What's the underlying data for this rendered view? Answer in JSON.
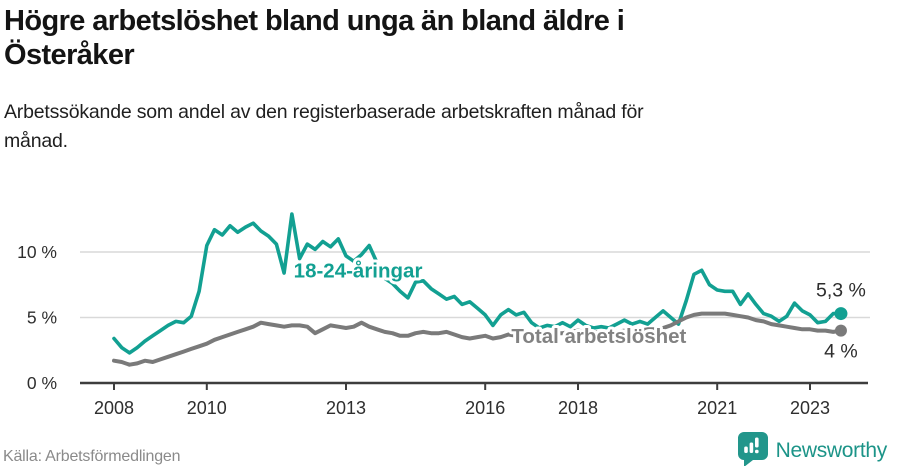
{
  "header": {
    "title_lines": [
      "Högre arbetslöshet bland unga än bland äldre i",
      "Österåker"
    ],
    "subtitle_lines": [
      "Arbetssökande som andel av den registerbaserade arbetskraften månad för",
      "månad."
    ]
  },
  "footer": {
    "source": "Källa: Arbetsförmedlingen",
    "brand": "Newsworthy"
  },
  "colors": {
    "accent_teal": "#12a092",
    "line_gray": "#7a7a7a",
    "gridline": "#d9d9d9",
    "axis": "#3d3d3d",
    "tick_label": "#2e2e2e",
    "end_label": "#2d2d2d",
    "logo_teal": "#22968b"
  },
  "chart_data": {
    "type": "line",
    "title": "Högre arbetslöshet bland unga än bland äldre i Österåker",
    "subtitle": "Arbetssökande som andel av den registerbaserade arbetskraften månad för månad.",
    "source": "Källa: Arbetsförmedlingen",
    "grid": "horizontal-only",
    "legend_position": "inline-labels",
    "x_domain": [
      2008.0,
      2023.667
    ],
    "x_step": 0.166667,
    "ylim": [
      0,
      13.5
    ],
    "x_ticks": [
      2008,
      2010,
      2013,
      2016,
      2018,
      2021,
      2023
    ],
    "x_tick_labels": [
      "2008",
      "2010",
      "2013",
      "2016",
      "2018",
      "2021",
      "2023"
    ],
    "y_ticks": [
      0,
      5,
      10
    ],
    "y_tick_labels": [
      "0 %",
      "5 %",
      "10 %"
    ],
    "series": [
      {
        "name": "18-24-åringar",
        "color": "#12a092",
        "end_label": "5,3 %",
        "end_value": 5.3,
        "values": [
          3.4,
          2.7,
          2.3,
          2.7,
          3.2,
          3.6,
          4.0,
          4.4,
          4.7,
          4.6,
          5.1,
          7.0,
          10.5,
          11.7,
          11.3,
          12.0,
          11.5,
          11.9,
          12.2,
          11.6,
          11.2,
          10.6,
          8.4,
          12.9,
          9.5,
          10.6,
          10.2,
          10.8,
          10.4,
          11.0,
          9.7,
          9.3,
          9.8,
          10.5,
          9.2,
          8.0,
          7.6,
          7.0,
          6.5,
          7.7,
          7.8,
          7.2,
          6.8,
          6.4,
          6.6,
          6.0,
          6.2,
          5.7,
          5.2,
          4.4,
          5.2,
          5.6,
          5.2,
          5.4,
          4.6,
          4.2,
          4.4,
          4.3,
          4.6,
          4.3,
          4.8,
          4.4,
          4.2,
          4.3,
          4.2,
          4.5,
          4.8,
          4.5,
          4.7,
          4.5,
          5.0,
          5.5,
          5.0,
          4.5,
          6.3,
          8.3,
          8.6,
          7.5,
          7.1,
          7.0,
          7.0,
          6.0,
          6.8,
          6.0,
          5.3,
          5.1,
          4.7,
          5.1,
          6.1,
          5.5,
          5.2,
          4.6,
          4.7,
          5.3,
          5.3
        ]
      },
      {
        "name": "Total arbetslöshet",
        "color": "#7a7a7a",
        "end_label": "4 %",
        "end_value": 4,
        "values": [
          1.7,
          1.6,
          1.4,
          1.5,
          1.7,
          1.6,
          1.8,
          2.0,
          2.2,
          2.4,
          2.6,
          2.8,
          3.0,
          3.3,
          3.5,
          3.7,
          3.9,
          4.1,
          4.3,
          4.6,
          4.5,
          4.4,
          4.3,
          4.4,
          4.4,
          4.3,
          3.8,
          4.1,
          4.4,
          4.3,
          4.2,
          4.3,
          4.6,
          4.3,
          4.1,
          3.9,
          3.8,
          3.6,
          3.6,
          3.8,
          3.9,
          3.8,
          3.8,
          3.9,
          3.7,
          3.5,
          3.4,
          3.5,
          3.6,
          3.4,
          3.5,
          3.7,
          3.6,
          3.5,
          3.5,
          3.6,
          3.7,
          3.8,
          3.8,
          3.9,
          4.0,
          3.9,
          3.9,
          3.8,
          3.9,
          3.9,
          4.0,
          4.0,
          4.0,
          4.1,
          4.1,
          4.2,
          4.4,
          4.7,
          5.0,
          5.2,
          5.3,
          5.3,
          5.3,
          5.3,
          5.2,
          5.1,
          5.0,
          4.8,
          4.7,
          4.5,
          4.4,
          4.3,
          4.2,
          4.1,
          4.1,
          4.0,
          4.0,
          3.9,
          4.0
        ]
      }
    ],
    "annotations": [
      {
        "text": "18-24-åringar",
        "x": 2013.26,
        "y": 8.6,
        "color": "#12a092"
      },
      {
        "text": "Total arbetslöshet",
        "x": 2018.45,
        "y": 3.6,
        "color": "#828282"
      }
    ]
  }
}
